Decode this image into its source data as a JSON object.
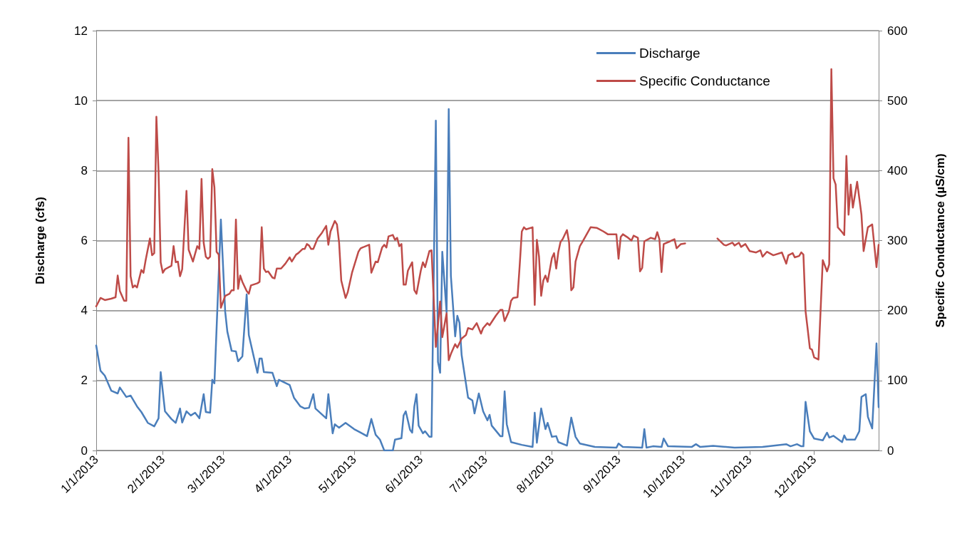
{
  "chart_data": {
    "type": "line",
    "xlabel": null,
    "ylabel": "Discharge (cfs)",
    "y2label": "Specific Conductance (µS/cm)",
    "xlim": [
      "2013-01-01",
      "2013-12-31"
    ],
    "xticks": [
      {
        "value": "2013-01-01",
        "label": "1/1/2013"
      },
      {
        "value": "2013-02-01",
        "label": "2/1/2013"
      },
      {
        "value": "2013-03-01",
        "label": "3/1/2013"
      },
      {
        "value": "2013-04-01",
        "label": "4/1/2013"
      },
      {
        "value": "2013-05-01",
        "label": "5/1/2013"
      },
      {
        "value": "2013-06-01",
        "label": "6/1/2013"
      },
      {
        "value": "2013-07-01",
        "label": "7/1/2013"
      },
      {
        "value": "2013-08-01",
        "label": "8/1/2013"
      },
      {
        "value": "2013-09-01",
        "label": "9/1/2013"
      },
      {
        "value": "2013-10-01",
        "label": "10/1/2013"
      },
      {
        "value": "2013-11-01",
        "label": "11/1/2013"
      },
      {
        "value": "2013-12-01",
        "label": "12/1/2013"
      }
    ],
    "ylim": [
      0,
      12
    ],
    "yticks": [
      0,
      2,
      4,
      6,
      8,
      10,
      12
    ],
    "y2lim": [
      0,
      600
    ],
    "y2ticks": [
      0,
      100,
      200,
      300,
      400,
      500,
      600
    ],
    "grid": "y",
    "legend": "top right",
    "marker": "none",
    "line_style": "solid",
    "series": [
      {
        "name": "Discharge",
        "color": "#4a7ebb",
        "x": [
          "2013-01-01",
          "2013-01-03",
          "2013-01-05",
          "2013-01-08",
          "2013-01-11",
          "2013-01-12",
          "2013-01-15",
          "2013-01-17",
          "2013-01-20",
          "2013-01-22",
          "2013-01-25",
          "2013-01-28",
          "2013-01-30",
          "2013-01-31",
          "2013-02-02",
          "2013-02-05",
          "2013-02-07",
          "2013-02-09",
          "2013-02-10",
          "2013-02-12",
          "2013-02-14",
          "2013-02-16",
          "2013-02-18",
          "2013-02-20",
          "2013-02-21",
          "2013-02-23",
          "2013-02-24",
          "2013-02-25",
          "2013-02-28",
          "2013-03-02",
          "2013-03-03",
          "2013-03-05",
          "2013-03-07",
          "2013-03-08",
          "2013-03-10",
          "2013-03-12",
          "2013-03-13",
          "2013-03-17",
          "2013-03-18",
          "2013-03-19",
          "2013-03-20",
          "2013-03-24",
          "2013-03-26",
          "2013-03-27",
          "2013-04-01",
          "2013-04-03",
          "2013-04-06",
          "2013-04-08",
          "2013-04-10",
          "2013-04-12",
          "2013-04-13",
          "2013-04-18",
          "2013-04-19",
          "2013-04-21",
          "2013-04-22",
          "2013-04-24",
          "2013-04-27",
          "2013-05-01",
          "2013-05-04",
          "2013-05-07",
          "2013-05-09",
          "2013-05-11",
          "2013-05-13",
          "2013-05-15",
          "2013-05-19",
          "2013-05-20",
          "2013-05-23",
          "2013-05-24",
          "2013-05-25",
          "2013-05-27",
          "2013-05-28",
          "2013-05-29",
          "2013-05-30",
          "2013-05-31",
          "2013-06-02",
          "2013-06-03",
          "2013-06-05",
          "2013-06-06",
          "2013-06-08",
          "2013-06-09",
          "2013-06-10",
          "2013-06-11",
          "2013-06-13",
          "2013-06-14",
          "2013-06-15",
          "2013-06-17",
          "2013-06-18",
          "2013-06-19",
          "2013-06-20",
          "2013-06-23",
          "2013-06-25",
          "2013-06-26",
          "2013-06-28",
          "2013-06-30",
          "2013-07-02",
          "2013-07-03",
          "2013-07-04",
          "2013-07-08",
          "2013-07-09",
          "2013-07-10",
          "2013-07-11",
          "2013-07-13",
          "2013-07-18",
          "2013-07-23",
          "2013-07-24",
          "2013-07-25",
          "2013-07-27",
          "2013-07-29",
          "2013-07-30",
          "2013-08-01",
          "2013-08-03",
          "2013-08-04",
          "2013-08-08",
          "2013-08-10",
          "2013-08-12",
          "2013-08-14",
          "2013-08-21",
          "2013-08-31",
          "2013-09-01",
          "2013-09-03",
          "2013-09-12",
          "2013-09-13",
          "2013-09-14",
          "2013-09-17",
          "2013-09-21",
          "2013-09-22",
          "2013-09-24",
          "2013-10-05",
          "2013-10-07",
          "2013-10-09",
          "2013-10-15",
          "2013-10-25",
          "2013-11-07",
          "2013-11-18",
          "2013-11-20",
          "2013-11-23",
          "2013-11-25",
          "2013-11-26",
          "2013-11-27",
          "2013-11-29",
          "2013-12-01",
          "2013-12-05",
          "2013-12-07",
          "2013-12-08",
          "2013-12-10",
          "2013-12-14",
          "2013-12-15",
          "2013-12-16",
          "2013-12-20",
          "2013-12-22",
          "2013-12-23",
          "2013-12-25",
          "2013-12-26",
          "2013-12-28",
          "2013-12-30",
          "2013-12-31"
        ],
        "values": [
          3.0,
          2.28,
          2.14,
          1.71,
          1.63,
          1.8,
          1.53,
          1.57,
          1.26,
          1.1,
          0.79,
          0.69,
          0.92,
          2.24,
          1.12,
          0.9,
          0.79,
          1.2,
          0.8,
          1.12,
          1.0,
          1.08,
          0.92,
          1.61,
          1.1,
          1.08,
          2.02,
          1.92,
          6.6,
          3.97,
          3.4,
          2.85,
          2.83,
          2.55,
          2.69,
          4.46,
          3.3,
          2.22,
          2.63,
          2.63,
          2.24,
          2.22,
          1.84,
          2.02,
          1.87,
          1.51,
          1.26,
          1.2,
          1.22,
          1.61,
          1.2,
          0.92,
          1.61,
          0.49,
          0.75,
          0.65,
          0.79,
          0.61,
          0.51,
          0.41,
          0.9,
          0.45,
          0.31,
          0,
          0,
          0.31,
          0.35,
          1.0,
          1.12,
          0.59,
          0.51,
          1.26,
          1.61,
          0.71,
          0.49,
          0.55,
          0.39,
          0.39,
          9.43,
          2.53,
          2.22,
          5.68,
          3.95,
          9.76,
          4.99,
          3.26,
          3.85,
          3.65,
          2.73,
          1.51,
          1.43,
          1.06,
          1.63,
          1.12,
          0.86,
          1.02,
          0.71,
          0.41,
          0.41,
          1.69,
          0.75,
          0.24,
          0.16,
          0.1,
          1.08,
          0.22,
          1.2,
          0.61,
          0.79,
          0.39,
          0.41,
          0.24,
          0.14,
          0.94,
          0.39,
          0.2,
          0.1,
          0.08,
          0.2,
          0.1,
          0.08,
          0.61,
          0.08,
          0.12,
          0.1,
          0.34,
          0.12,
          0.1,
          0.18,
          0.1,
          0.13,
          0.08,
          0.1,
          0.18,
          0.12,
          0.18,
          0.12,
          0.12,
          1.39,
          0.55,
          0.34,
          0.29,
          0.51,
          0.37,
          0.42,
          0.24,
          0.43,
          0.31,
          0.31,
          0.55,
          1.53,
          1.61,
          0.96,
          0.63,
          3.06,
          1.24
        ]
      },
      {
        "name": "Specific Conductance",
        "color": "#be4b48",
        "axis": "y2",
        "x": [
          "2013-01-01",
          "2013-01-03",
          "2013-01-05",
          "2013-01-08",
          "2013-01-10",
          "2013-01-11",
          "2013-01-12",
          "2013-01-14",
          "2013-01-15",
          "2013-01-16",
          "2013-01-17",
          "2013-01-18",
          "2013-01-19",
          "2013-01-20",
          "2013-01-22",
          "2013-01-23",
          "2013-01-24",
          "2013-01-26",
          "2013-01-27",
          "2013-01-28",
          "2013-01-29",
          "2013-01-30",
          "2013-01-31",
          "2013-02-01",
          "2013-02-02",
          "2013-02-05",
          "2013-02-06",
          "2013-02-07",
          "2013-02-08",
          "2013-02-09",
          "2013-02-10",
          "2013-02-12",
          "2013-02-13",
          "2013-02-15",
          "2013-02-17",
          "2013-02-18",
          "2013-02-19",
          "2013-02-20",
          "2013-02-21",
          "2013-02-22",
          "2013-02-23",
          "2013-02-24",
          "2013-02-25",
          "2013-02-26",
          "2013-02-27",
          "2013-02-28",
          "2013-03-02",
          "2013-03-04",
          "2013-03-05",
          "2013-03-06",
          "2013-03-07",
          "2013-03-08",
          "2013-03-09",
          "2013-03-10",
          "2013-03-12",
          "2013-03-13",
          "2013-03-14",
          "2013-03-17",
          "2013-03-18",
          "2013-03-19",
          "2013-03-20",
          "2013-03-21",
          "2013-03-22",
          "2013-03-24",
          "2013-03-25",
          "2013-03-26",
          "2013-03-28",
          "2013-03-30",
          "2013-04-01",
          "2013-04-02",
          "2013-04-04",
          "2013-04-05",
          "2013-04-07",
          "2013-04-08",
          "2013-04-09",
          "2013-04-10",
          "2013-04-11",
          "2013-04-12",
          "2013-04-14",
          "2013-04-16",
          "2013-04-18",
          "2013-04-19",
          "2013-04-20",
          "2013-04-22",
          "2013-04-23",
          "2013-04-24",
          "2013-04-25",
          "2013-04-27",
          "2013-04-28",
          "2013-04-30",
          "2013-05-03",
          "2013-05-04",
          "2013-05-08",
          "2013-05-09",
          "2013-05-11",
          "2013-05-12",
          "2013-05-14",
          "2013-05-15",
          "2013-05-16",
          "2013-05-17",
          "2013-05-19",
          "2013-05-20",
          "2013-05-21",
          "2013-05-22",
          "2013-05-23",
          "2013-05-24",
          "2013-05-25",
          "2013-05-26",
          "2013-05-28",
          "2013-05-29",
          "2013-05-30",
          "2013-06-01",
          "2013-06-02",
          "2013-06-03",
          "2013-06-05",
          "2013-06-06",
          "2013-06-08",
          "2013-06-09",
          "2013-06-10",
          "2013-06-11",
          "2013-06-13",
          "2013-06-14",
          "2013-06-15",
          "2013-06-17",
          "2013-06-18",
          "2013-06-20",
          "2013-06-22",
          "2013-06-23",
          "2013-06-25",
          "2013-06-27",
          "2013-06-29",
          "2013-06-30",
          "2013-07-02",
          "2013-07-03",
          "2013-07-06",
          "2013-07-08",
          "2013-07-09",
          "2013-07-10",
          "2013-07-12",
          "2013-07-13",
          "2013-07-14",
          "2013-07-16",
          "2013-07-17",
          "2013-07-18",
          "2013-07-19",
          "2013-07-20",
          "2013-07-23",
          "2013-07-24",
          "2013-07-25",
          "2013-07-26",
          "2013-07-27",
          "2013-07-28",
          "2013-07-29",
          "2013-07-30",
          "2013-08-01",
          "2013-08-02",
          "2013-08-03",
          "2013-08-04",
          "2013-08-05",
          "2013-08-06",
          "2013-08-08",
          "2013-08-09",
          "2013-08-10",
          "2013-08-11",
          "2013-08-12",
          "2013-08-14",
          "2013-08-15",
          "2013-08-17",
          "2013-08-19",
          "2013-08-22",
          "2013-08-25",
          "2013-08-27",
          "2013-08-29",
          "2013-08-31",
          "2013-09-01",
          "2013-09-02",
          "2013-09-03",
          "2013-09-05",
          "2013-09-07",
          "2013-09-08",
          "2013-09-10",
          "2013-09-11",
          "2013-09-12",
          "2013-09-13",
          "2013-09-16",
          "2013-09-18",
          "2013-09-19",
          "2013-09-20",
          "2013-09-21",
          "2013-09-22",
          "2013-09-25",
          "2013-09-27",
          "2013-09-28",
          "2013-09-30",
          "2013-10-02",
          "2013-10-10",
          "2013-10-17",
          "2013-10-20",
          "2013-10-21",
          "2013-10-24",
          "2013-10-25",
          "2013-10-27",
          "2013-10-28",
          "2013-10-30",
          "2013-11-01",
          "2013-11-04",
          "2013-11-06",
          "2013-11-07",
          "2013-11-09",
          "2013-11-12",
          "2013-11-16",
          "2013-11-18",
          "2013-11-19",
          "2013-11-21",
          "2013-11-22",
          "2013-11-24",
          "2013-11-25",
          "2013-11-26",
          "2013-11-27",
          "2013-11-28",
          "2013-11-29",
          "2013-11-30",
          "2013-12-01",
          "2013-12-03",
          "2013-12-05",
          "2013-12-07",
          "2013-12-08",
          "2013-12-09",
          "2013-12-10",
          "2013-12-11",
          "2013-12-12",
          "2013-12-14",
          "2013-12-15",
          "2013-12-16",
          "2013-12-17",
          "2013-12-18",
          "2013-12-19",
          "2013-12-21",
          "2013-12-23",
          "2013-12-24",
          "2013-12-26",
          "2013-12-28",
          "2013-12-30",
          "2013-12-31"
        ],
        "values": [
          206,
          218,
          215,
          217,
          219,
          250,
          228,
          214,
          214,
          447,
          249,
          233,
          236,
          233,
          258,
          254,
          272,
          303,
          279,
          282,
          477,
          399,
          269,
          254,
          259,
          264,
          292,
          269,
          270,
          249,
          259,
          371,
          287,
          270,
          292,
          288,
          388,
          297,
          277,
          274,
          277,
          402,
          376,
          284,
          280,
          204,
          221,
          224,
          229,
          229,
          330,
          231,
          250,
          241,
          228,
          224,
          236,
          239,
          241,
          319,
          260,
          255,
          256,
          247,
          246,
          260,
          260,
          267,
          276,
          270,
          280,
          282,
          288,
          288,
          295,
          293,
          288,
          288,
          303,
          311,
          321,
          294,
          313,
          328,
          323,
          297,
          243,
          218,
          226,
          254,
          284,
          289,
          294,
          254,
          270,
          269,
          290,
          294,
          290,
          306,
          308,
          301,
          304,
          292,
          295,
          237,
          237,
          257,
          269,
          229,
          224,
          257,
          269,
          262,
          285,
          286,
          148,
          180,
          213,
          162,
          196,
          129,
          138,
          152,
          147,
          160,
          165,
          175,
          173,
          182,
          167,
          175,
          182,
          179,
          193,
          201,
          201,
          185,
          199,
          214,
          218,
          219,
          264,
          313,
          319,
          316,
          319,
          208,
          301,
          277,
          221,
          243,
          250,
          241,
          275,
          282,
          260,
          284,
          298,
          302,
          315,
          297,
          229,
          233,
          270,
          292,
          297,
          308,
          319,
          318,
          313,
          309,
          309,
          309,
          274,
          305,
          309,
          305,
          300,
          307,
          304,
          256,
          261,
          299,
          304,
          302,
          312,
          302,
          255,
          295,
          299,
          302,
          289,
          295,
          296,
          null,
          303,
          294,
          293,
          297,
          293,
          297,
          291,
          295,
          285,
          283,
          286,
          277,
          284,
          279,
          283,
          267,
          279,
          282,
          276,
          278,
          283,
          280,
          199,
          173,
          146,
          144,
          133,
          130,
          272,
          256,
          266,
          545,
          389,
          380,
          319,
          312,
          308,
          421,
          337,
          380,
          347,
          384,
          337,
          285,
          319,
          323,
          262,
          294
        ]
      }
    ]
  }
}
